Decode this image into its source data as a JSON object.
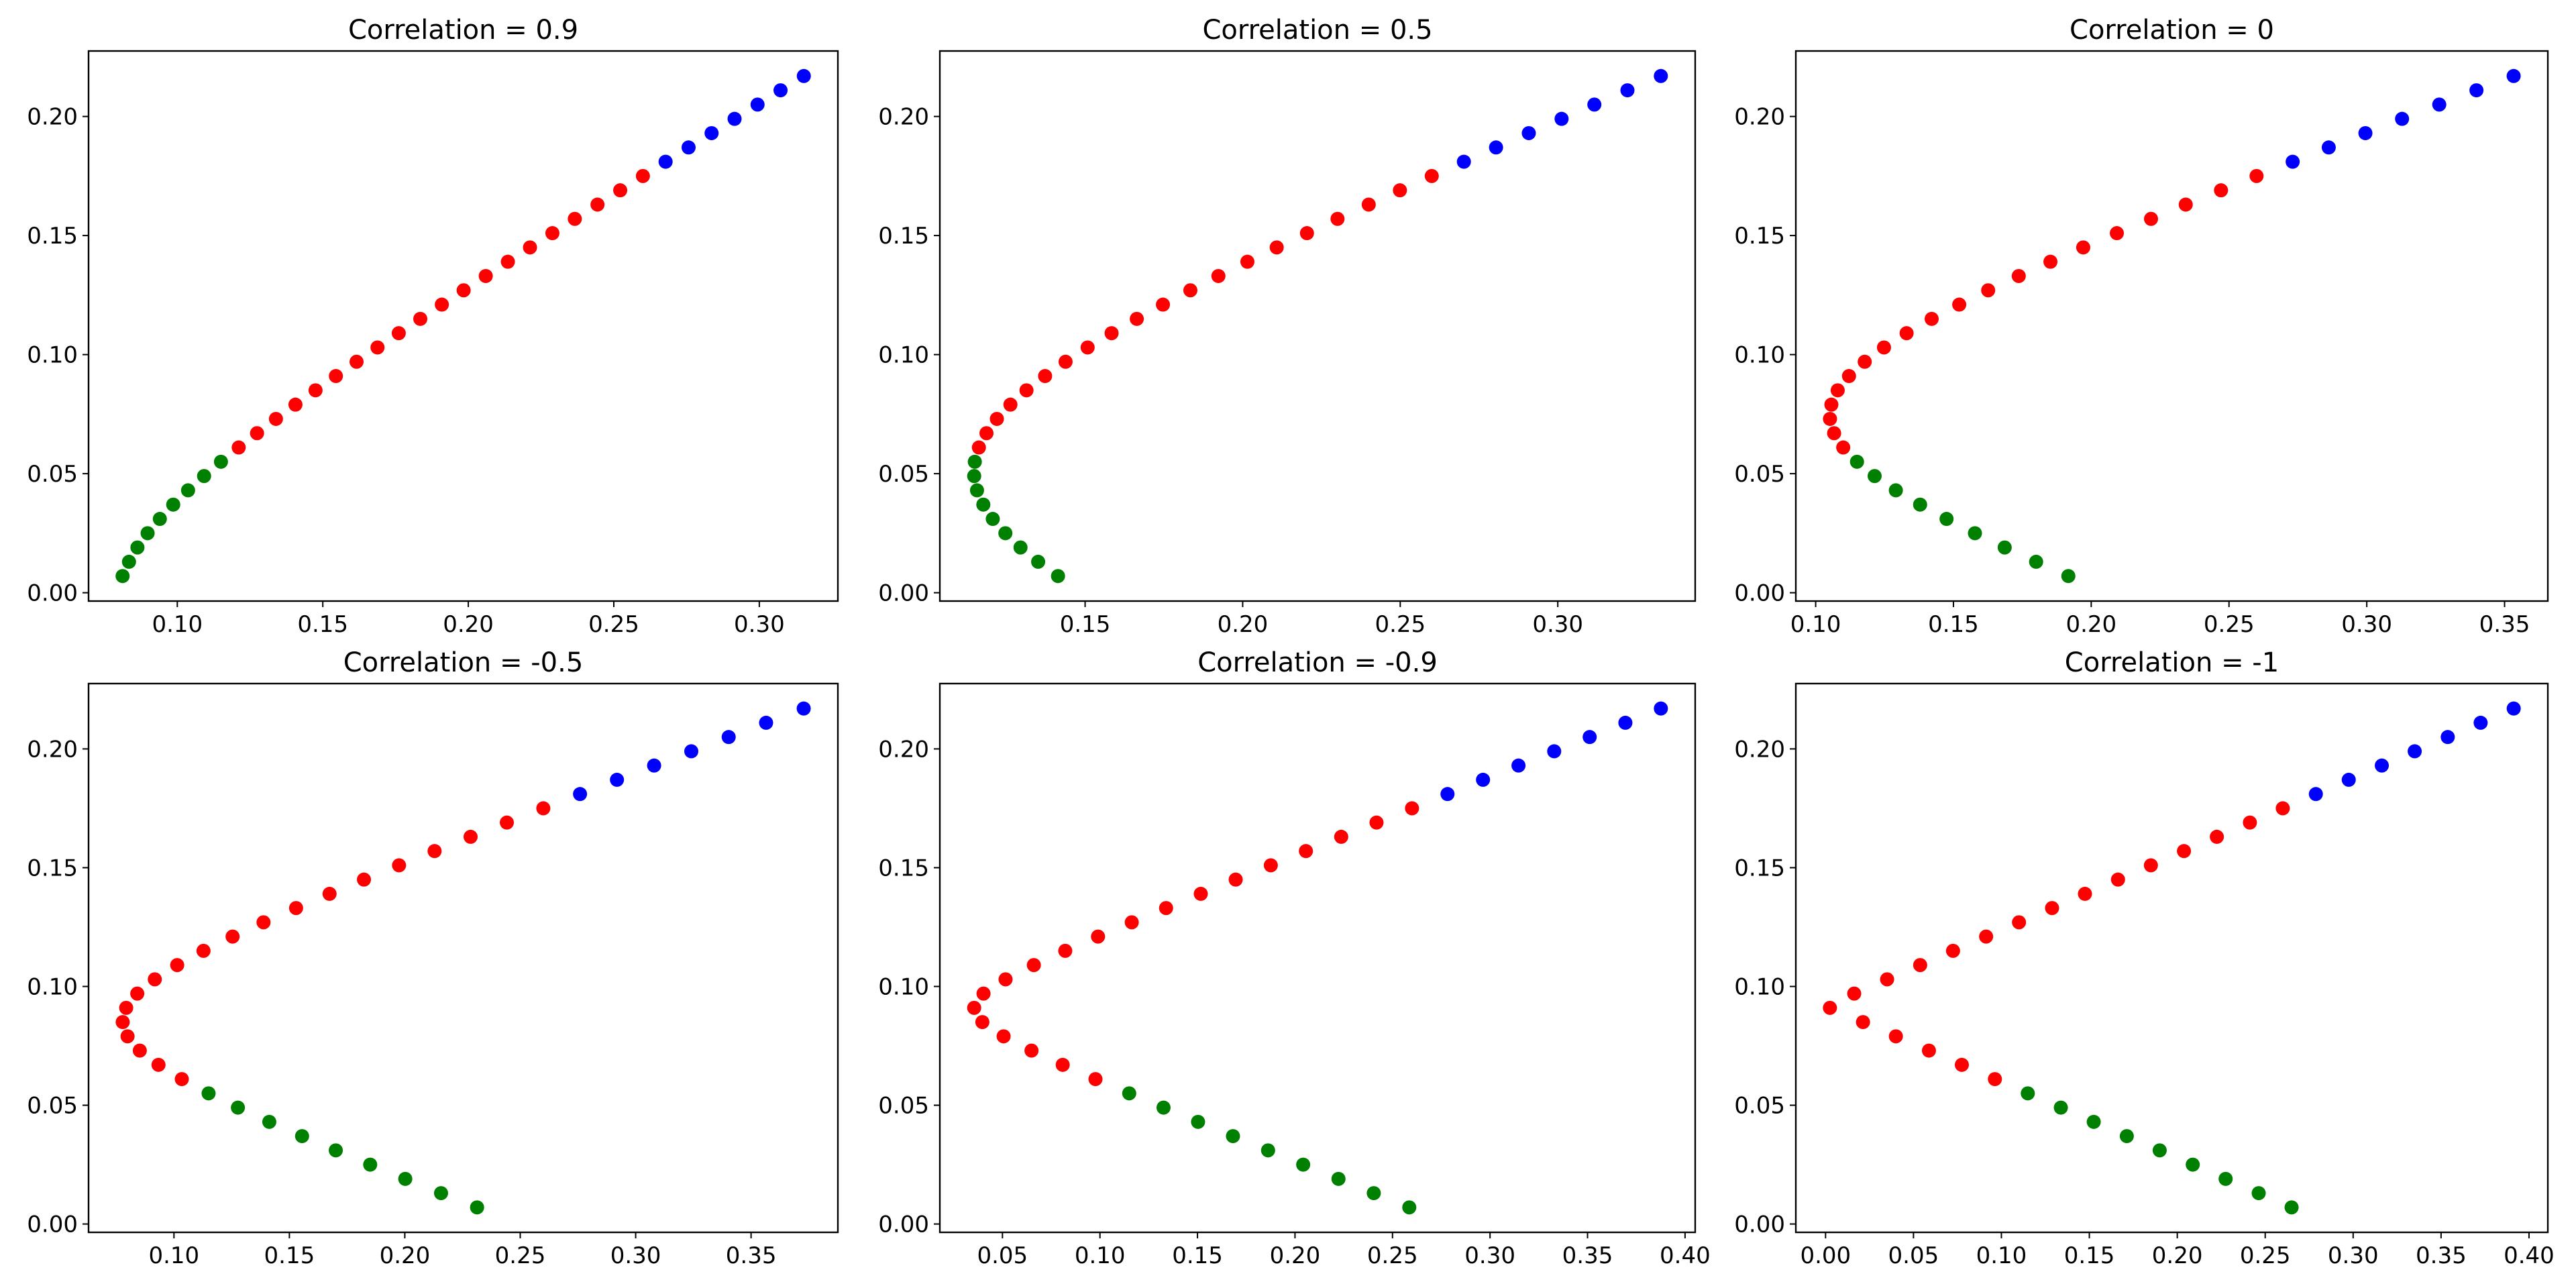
{
  "chart_data": [
    {
      "type": "scatter",
      "title": "Correlation = 0.9",
      "xlim": [
        0.0695,
        0.327
      ],
      "ylim": [
        -0.0035,
        0.2275
      ],
      "xticks": [
        "0.10",
        "0.15",
        "0.20",
        "0.25",
        "0.30"
      ],
      "x": [
        0.0812,
        0.0834,
        0.0863,
        0.0898,
        0.094,
        0.0986,
        0.1037,
        0.1092,
        0.115,
        0.1211,
        0.1274,
        0.1339,
        0.1406,
        0.1475,
        0.1545,
        0.1616,
        0.1688,
        0.1761,
        0.1835,
        0.1909,
        0.1984,
        0.206,
        0.2136,
        0.2212,
        0.2289,
        0.2366,
        0.2444,
        0.2522,
        0.26,
        0.2678,
        0.2757,
        0.2836,
        0.2915,
        0.2994,
        0.3073,
        0.3153
      ]
    },
    {
      "type": "scatter",
      "title": "Correlation = 0.5",
      "xlim": [
        0.1039,
        0.3436
      ],
      "ylim": [
        -0.0035,
        0.2275
      ],
      "xticks": [
        "0.15",
        "0.20",
        "0.25",
        "0.30"
      ],
      "x": [
        0.1414,
        0.1351,
        0.1295,
        0.1247,
        0.1207,
        0.1177,
        0.1157,
        0.1148,
        0.115,
        0.1163,
        0.1187,
        0.122,
        0.1263,
        0.1314,
        0.1373,
        0.1438,
        0.1508,
        0.1584,
        0.1664,
        0.1747,
        0.1834,
        0.1923,
        0.2015,
        0.2108,
        0.2204,
        0.2301,
        0.24,
        0.2499,
        0.26,
        0.2702,
        0.2804,
        0.2908,
        0.3012,
        0.3116,
        0.3221,
        0.3327
      ]
    },
    {
      "type": "scatter",
      "title": "Correlation = 0",
      "xlim": [
        0.0928,
        0.3657
      ],
      "ylim": [
        -0.0035,
        0.2275
      ],
      "xticks": [
        "0.10",
        "0.15",
        "0.20",
        "0.25",
        "0.30",
        "0.35"
      ],
      "x": [
        0.1917,
        0.18,
        0.1686,
        0.1578,
        0.1475,
        0.1379,
        0.1291,
        0.1214,
        0.115,
        0.11,
        0.1067,
        0.1052,
        0.1057,
        0.108,
        0.1121,
        0.1178,
        0.1248,
        0.133,
        0.1421,
        0.1521,
        0.1626,
        0.1737,
        0.1852,
        0.1971,
        0.2093,
        0.2217,
        0.2343,
        0.2471,
        0.26,
        0.2731,
        0.2862,
        0.2995,
        0.3128,
        0.3263,
        0.3398,
        0.3533
      ]
    },
    {
      "type": "scatter",
      "title": "Correlation = -0.5",
      "xlim": [
        0.063,
        0.3876
      ],
      "ylim": [
        -0.0035,
        0.2275
      ],
      "xticks": [
        "0.10",
        "0.15",
        "0.20",
        "0.25",
        "0.30",
        "0.35"
      ],
      "x": [
        0.2313,
        0.2157,
        0.2002,
        0.185,
        0.1701,
        0.1555,
        0.1413,
        0.1277,
        0.115,
        0.1034,
        0.0933,
        0.0852,
        0.0799,
        0.0778,
        0.0793,
        0.0841,
        0.0917,
        0.1014,
        0.1128,
        0.1254,
        0.1388,
        0.1529,
        0.1674,
        0.1823,
        0.1975,
        0.2129,
        0.2285,
        0.2442,
        0.26,
        0.2759,
        0.2919,
        0.308,
        0.3241,
        0.3403,
        0.3565,
        0.3728
      ]
    },
    {
      "type": "scatter",
      "title": "Correlation = -0.9",
      "xlim": [
        0.0179,
        0.4052
      ],
      "ylim": [
        -0.0035,
        0.2275
      ],
      "xticks": [
        "0.05",
        "0.10",
        "0.15",
        "0.20",
        "0.25",
        "0.30",
        "0.35",
        "0.40"
      ],
      "x": [
        0.2586,
        0.2404,
        0.2223,
        0.2042,
        0.1862,
        0.1682,
        0.1503,
        0.1326,
        0.115,
        0.0977,
        0.0809,
        0.0649,
        0.0506,
        0.0397,
        0.0355,
        0.0403,
        0.0516,
        0.0661,
        0.0822,
        0.099,
        0.1163,
        0.1339,
        0.1517,
        0.1696,
        0.1876,
        0.2056,
        0.2237,
        0.2418,
        0.26,
        0.2782,
        0.2964,
        0.3146,
        0.3329,
        0.3511,
        0.3694,
        0.3876
      ]
    },
    {
      "type": "scatter",
      "title": "Correlation = -1",
      "xlim": [
        -0.0169,
        0.4107
      ],
      "ylim": [
        -0.0035,
        0.2275
      ],
      "xticks": [
        "0.00",
        "0.05",
        "0.10",
        "0.15",
        "0.20",
        "0.25",
        "0.30",
        "0.35",
        "0.40"
      ],
      "x": [
        0.265,
        0.2463,
        0.2275,
        0.2088,
        0.19,
        0.1713,
        0.1525,
        0.1338,
        0.115,
        0.0963,
        0.0775,
        0.0588,
        0.04,
        0.0213,
        0.0025,
        0.0163,
        0.035,
        0.0538,
        0.0725,
        0.0913,
        0.11,
        0.1288,
        0.1475,
        0.1663,
        0.185,
        0.2038,
        0.2225,
        0.2413,
        0.26,
        0.2788,
        0.2975,
        0.3163,
        0.335,
        0.3538,
        0.3725,
        0.3913
      ]
    }
  ],
  "shared": {
    "y": [
      0.007,
      0.013,
      0.019,
      0.025,
      0.031,
      0.037,
      0.043,
      0.049,
      0.055,
      0.061,
      0.067,
      0.073,
      0.079,
      0.085,
      0.091,
      0.097,
      0.103,
      0.109,
      0.115,
      0.121,
      0.127,
      0.133,
      0.139,
      0.145,
      0.151,
      0.157,
      0.163,
      0.169,
      0.175,
      0.181,
      0.187,
      0.193,
      0.199,
      0.205,
      0.211,
      0.217
    ],
    "yticks": [
      "0.00",
      "0.05",
      "0.10",
      "0.15",
      "0.20"
    ],
    "groups": [
      {
        "name": "green",
        "color": "#008000",
        "from": 0,
        "to": 8
      },
      {
        "name": "red",
        "color": "#ff0000",
        "from": 9,
        "to": 28
      },
      {
        "name": "blue",
        "color": "#0000ff",
        "from": 29,
        "to": 35
      }
    ]
  }
}
